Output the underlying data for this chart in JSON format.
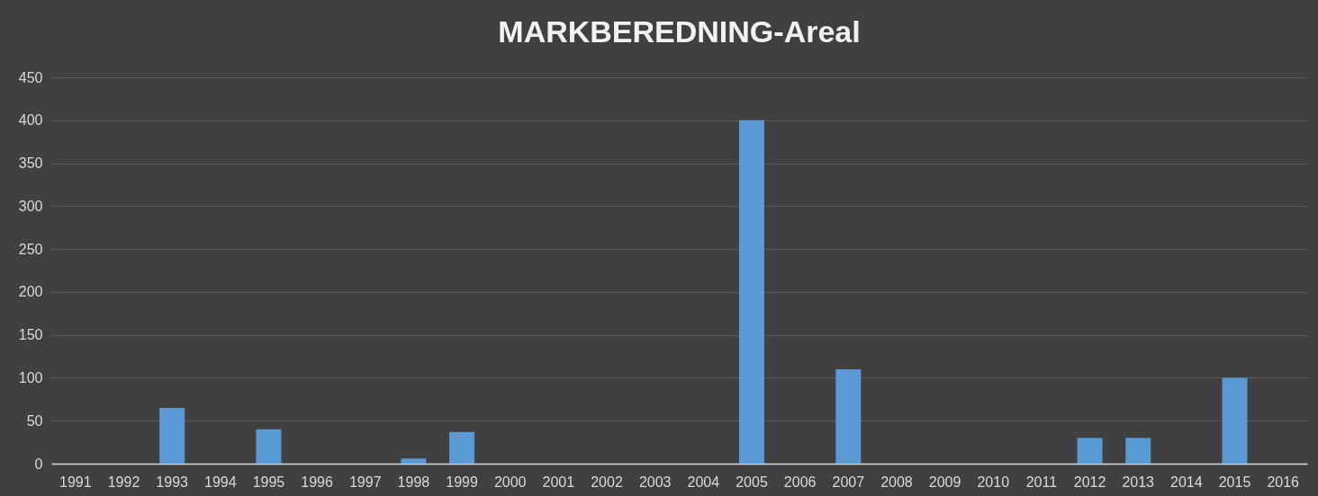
{
  "chart_data": {
    "type": "bar",
    "title": "MARKBEREDNING-Areal",
    "categories": [
      "1991",
      "1992",
      "1993",
      "1994",
      "1995",
      "1996",
      "1997",
      "1998",
      "1999",
      "2000",
      "2001",
      "2002",
      "2003",
      "2004",
      "2005",
      "2006",
      "2007",
      "2008",
      "2009",
      "2010",
      "2011",
      "2012",
      "2013",
      "2014",
      "2015",
      "2016"
    ],
    "values": [
      0,
      0,
      65,
      0,
      40,
      0,
      0,
      6,
      37,
      0,
      0,
      0,
      0,
      0,
      400,
      0,
      110,
      0,
      0,
      0,
      0,
      30,
      30,
      0,
      100,
      0
    ],
    "color": "#5b9bd5",
    "ylim": [
      0,
      450
    ],
    "yticks": [
      0,
      50,
      100,
      150,
      200,
      250,
      300,
      350,
      400,
      450
    ],
    "grid": "y"
  }
}
